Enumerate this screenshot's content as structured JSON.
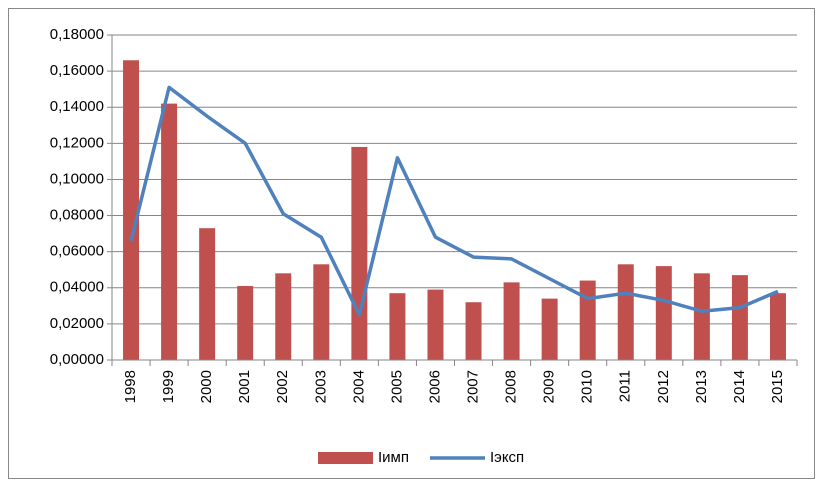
{
  "chart_data": {
    "type": "bar-line",
    "categories": [
      "1998",
      "1999",
      "2000",
      "2001",
      "2002",
      "2003",
      "2004",
      "2005",
      "2006",
      "2007",
      "2008",
      "2009",
      "2010",
      "2011",
      "2012",
      "2013",
      "2014",
      "2015"
    ],
    "series": [
      {
        "name": "Iимп",
        "type": "bar",
        "color": "#c0504d",
        "values": [
          0.166,
          0.142,
          0.073,
          0.041,
          0.048,
          0.053,
          0.118,
          0.037,
          0.039,
          0.032,
          0.043,
          0.034,
          0.044,
          0.053,
          0.052,
          0.048,
          0.047,
          0.037
        ]
      },
      {
        "name": "Iэксп",
        "type": "line",
        "color": "#4f81bd",
        "values": [
          0.066,
          0.151,
          0.135,
          0.12,
          0.081,
          0.068,
          0.025,
          0.112,
          0.068,
          0.057,
          0.056,
          0.045,
          0.034,
          0.037,
          0.033,
          0.027,
          0.029,
          0.038
        ]
      }
    ],
    "ylim": [
      0,
      0.18
    ],
    "yticks": [
      {
        "value": 0,
        "label": "0,00000"
      },
      {
        "value": 0.02,
        "label": "0,02000"
      },
      {
        "value": 0.04,
        "label": "0,04000"
      },
      {
        "value": 0.06,
        "label": "0,06000"
      },
      {
        "value": 0.08,
        "label": "0,08000"
      },
      {
        "value": 0.1,
        "label": "0,10000"
      },
      {
        "value": 0.12,
        "label": "0,12000"
      },
      {
        "value": 0.14,
        "label": "0,14000"
      },
      {
        "value": 0.16,
        "label": "0,16000"
      },
      {
        "value": 0.18,
        "label": "0,18000"
      }
    ],
    "grid": true,
    "legend": "bottom"
  }
}
